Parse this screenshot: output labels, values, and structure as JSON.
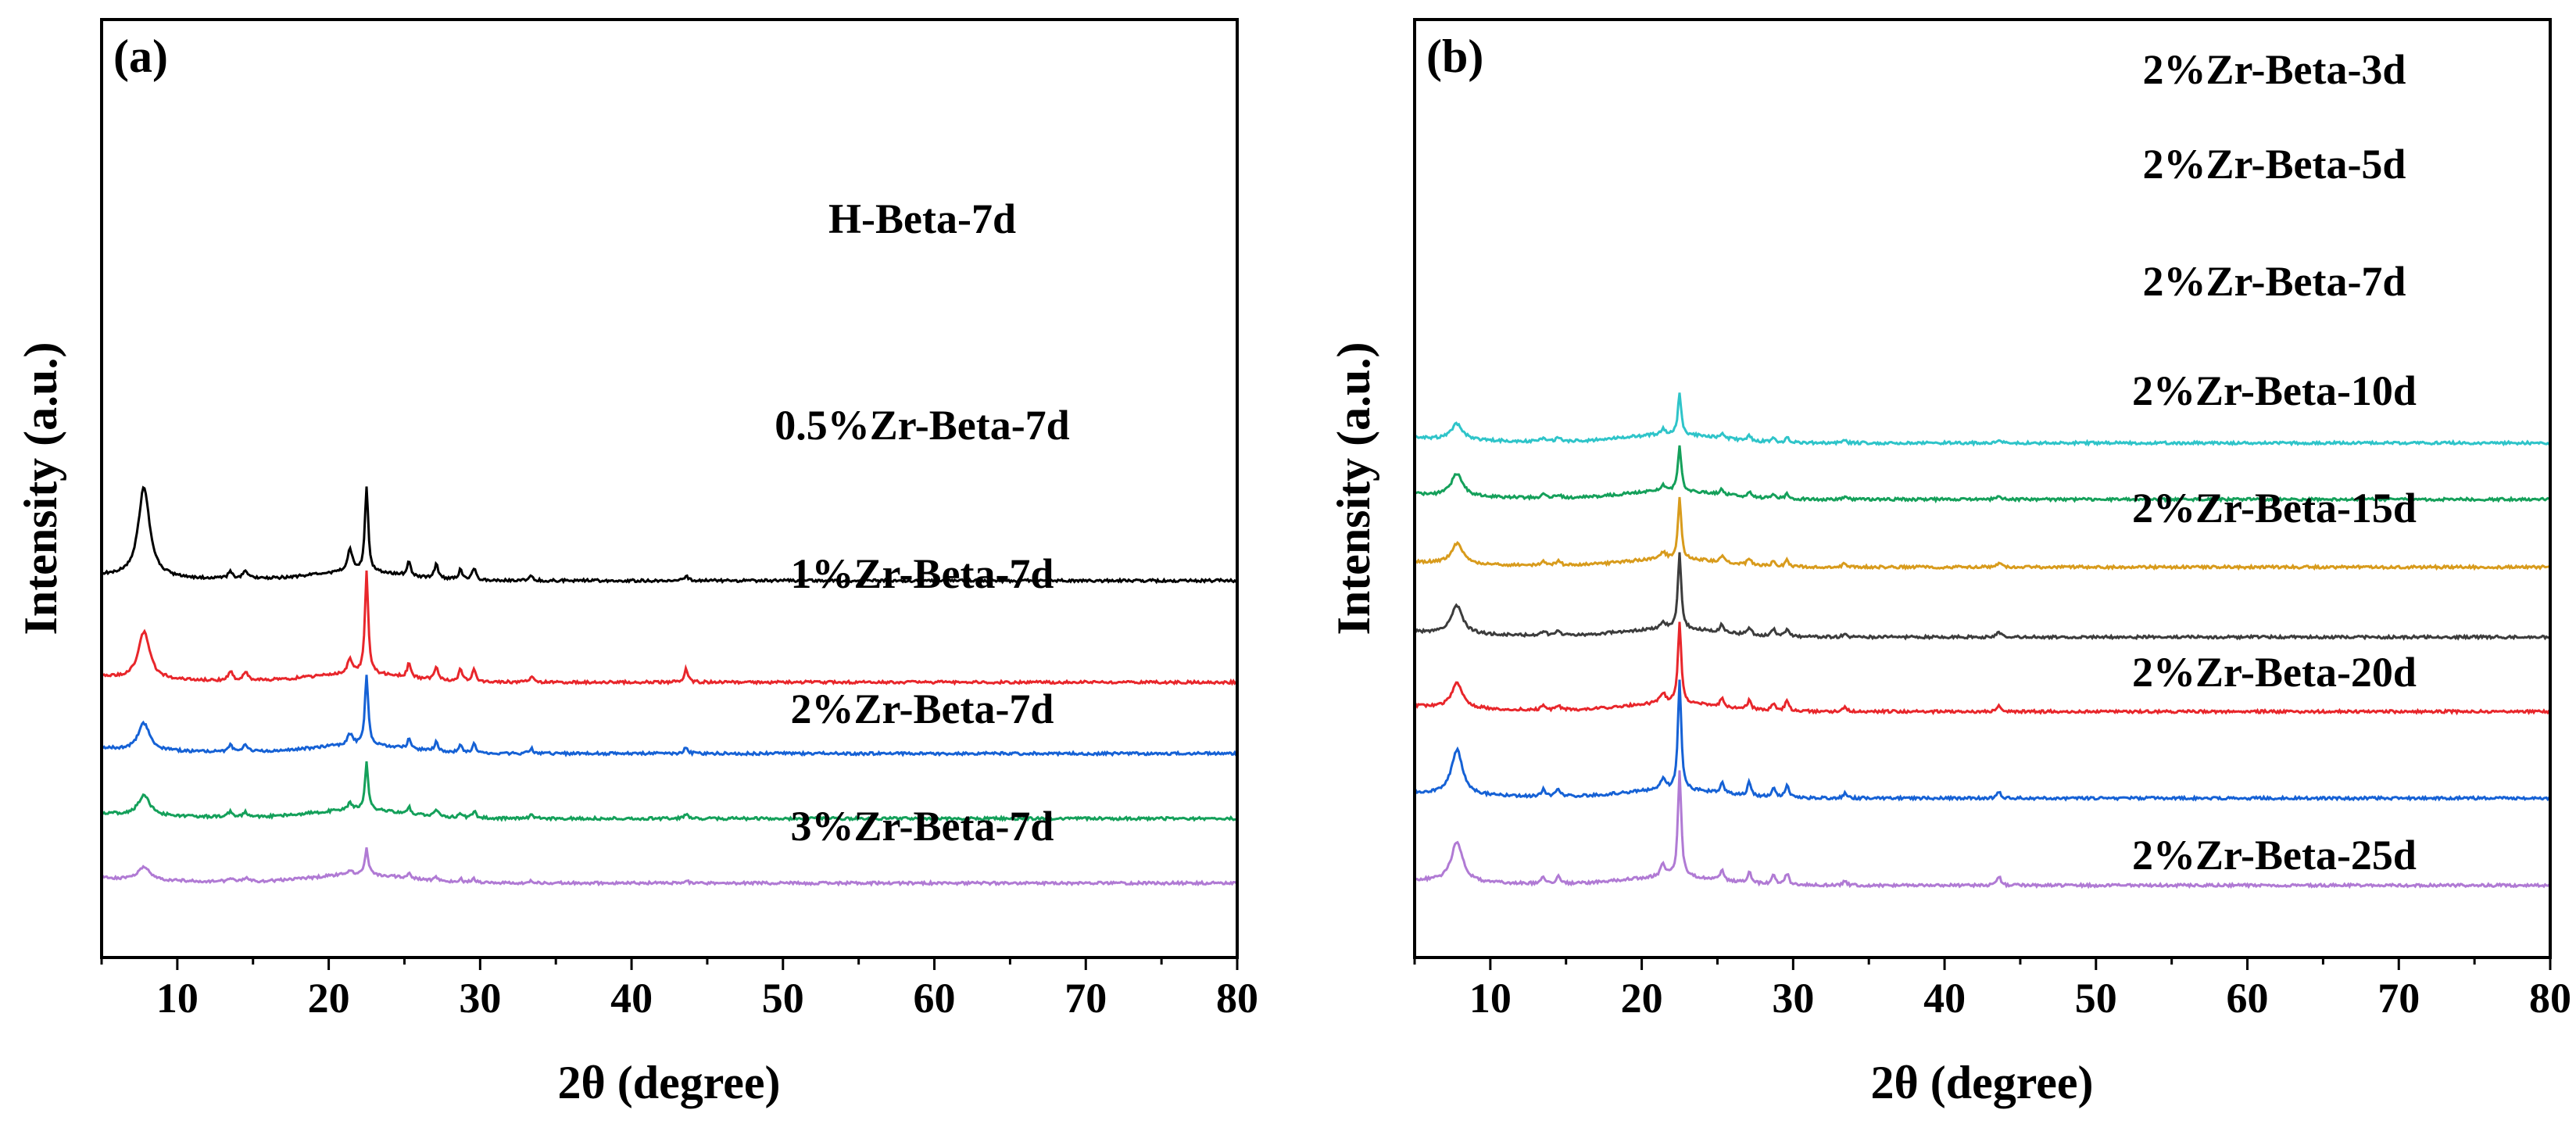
{
  "chart_data": [
    {
      "type": "line",
      "panel_label": "(a)",
      "xlabel": "2θ (degree)",
      "ylabel": "Intensity (a.u.)",
      "xlim": [
        5,
        80
      ],
      "xticks": [
        10,
        20,
        30,
        40,
        50,
        60,
        70,
        80
      ],
      "y_ticks_shown": false,
      "peaks_2theta": [
        7.8,
        13.5,
        14.5,
        21.4,
        22.5,
        25.3,
        27.1,
        28.7,
        29.6,
        33.4,
        43.6
      ],
      "series": [
        {
          "name": "H-Beta-7d",
          "color": "#000000",
          "baseline": 5.55,
          "peak_heights": [
            2.0,
            0.15,
            0.2,
            0.5,
            1.9,
            0.3,
            0.32,
            0.22,
            0.26,
            0.1,
            0.1
          ]
        },
        {
          "name": "0.5%Zr-Beta-7d",
          "color": "#e8262b",
          "baseline": 3.3,
          "peak_heights": [
            1.05,
            0.2,
            0.18,
            0.3,
            2.25,
            0.3,
            0.3,
            0.25,
            0.3,
            0.15,
            0.3
          ]
        },
        {
          "name": "1%Zr-Beta-7d",
          "color": "#1561d5",
          "baseline": 1.72,
          "peak_heights": [
            0.6,
            0.15,
            0.15,
            0.25,
            1.55,
            0.2,
            0.2,
            0.15,
            0.2,
            0.1,
            0.15
          ]
        },
        {
          "name": "2%Zr-Beta-7d",
          "color": "#14a05a",
          "baseline": 0.28,
          "peak_heights": [
            0.45,
            0.12,
            0.1,
            0.15,
            1.05,
            0.15,
            0.15,
            0.1,
            0.15,
            0.08,
            0.1
          ]
        },
        {
          "name": "3%Zr-Beta-7d",
          "color": "#b07ad4",
          "baseline": -1.15,
          "peak_heights": [
            0.28,
            0.08,
            0.08,
            0.1,
            0.6,
            0.1,
            0.08,
            0.08,
            0.08,
            0.05,
            0.06
          ]
        }
      ]
    },
    {
      "type": "line",
      "panel_label": "(b)",
      "xlabel": "2θ (degree)",
      "ylabel": "Intensity (a.u.)",
      "xlim": [
        5,
        80
      ],
      "xticks": [
        10,
        20,
        30,
        40,
        50,
        60,
        70,
        80
      ],
      "y_ticks_shown": false,
      "peaks_2theta": [
        7.8,
        13.5,
        14.5,
        21.4,
        22.5,
        25.3,
        27.1,
        28.7,
        29.6,
        33.4,
        43.6
      ],
      "series": [
        {
          "name": "2%Zr-Beta-3d",
          "color": "#2ec4c9",
          "baseline": 8.6,
          "peak_heights": [
            0.35,
            0.08,
            0.08,
            0.12,
            0.92,
            0.12,
            0.12,
            0.1,
            0.1,
            0.05,
            0.08
          ]
        },
        {
          "name": "2%Zr-Beta-5d",
          "color": "#14a05a",
          "baseline": 7.35,
          "peak_heights": [
            0.5,
            0.08,
            0.08,
            0.12,
            1.02,
            0.12,
            0.12,
            0.1,
            0.1,
            0.05,
            0.08
          ]
        },
        {
          "name": "2%Zr-Beta-7d",
          "color": "#d89b1c",
          "baseline": 5.85,
          "peak_heights": [
            0.45,
            0.1,
            0.1,
            0.15,
            1.35,
            0.15,
            0.15,
            0.12,
            0.15,
            0.08,
            0.1
          ]
        },
        {
          "name": "2%Zr-Beta-10d",
          "color": "#3c3c3c",
          "baseline": 4.3,
          "peak_heights": [
            0.62,
            0.1,
            0.1,
            0.15,
            1.7,
            0.18,
            0.18,
            0.15,
            0.18,
            0.08,
            0.12
          ]
        },
        {
          "name": "2%Zr-Beta-15d",
          "color": "#e8262b",
          "baseline": 2.65,
          "peak_heights": [
            0.55,
            0.1,
            0.1,
            0.22,
            1.8,
            0.2,
            0.2,
            0.15,
            0.25,
            0.1,
            0.15
          ]
        },
        {
          "name": "2%Zr-Beta-20d",
          "color": "#1561d5",
          "baseline": 0.73,
          "peak_heights": [
            1.0,
            0.15,
            0.15,
            0.22,
            2.45,
            0.25,
            0.3,
            0.22,
            0.3,
            0.1,
            0.15
          ]
        },
        {
          "name": "2%Zr-Beta-25d",
          "color": "#b07ad4",
          "baseline": -1.2,
          "peak_heights": [
            0.9,
            0.15,
            0.15,
            0.25,
            2.35,
            0.25,
            0.25,
            0.2,
            0.25,
            0.1,
            0.2
          ]
        }
      ]
    }
  ]
}
